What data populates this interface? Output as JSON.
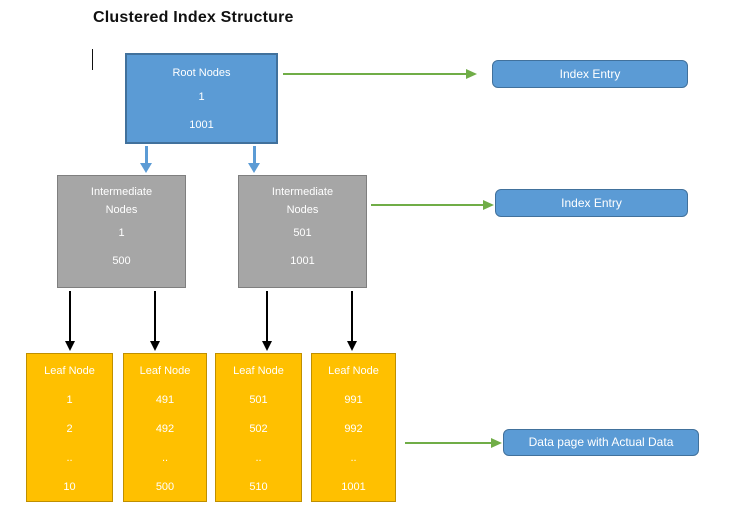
{
  "title": "Clustered Index Structure",
  "diagram": {
    "root": {
      "label": "Root Nodes",
      "values": [
        "1",
        "1001"
      ]
    },
    "intermediate": [
      {
        "label": "Intermediate Nodes",
        "values": [
          "1",
          "500"
        ]
      },
      {
        "label": "Intermediate Nodes",
        "values": [
          "501",
          "1001"
        ]
      }
    ],
    "leaves": [
      {
        "label": "Leaf Node",
        "values": [
          "1",
          "2",
          "..",
          "10"
        ]
      },
      {
        "label": "Leaf Node",
        "values": [
          "491",
          "492",
          "..",
          "500"
        ]
      },
      {
        "label": "Leaf Node",
        "values": [
          "501",
          "502",
          "..",
          "510"
        ]
      },
      {
        "label": "Leaf Node",
        "values": [
          "991",
          "992",
          "..",
          "1001"
        ]
      }
    ],
    "callouts": [
      {
        "label": "Index Entry"
      },
      {
        "label": "Index Entry"
      },
      {
        "label": "Data page with Actual Data"
      }
    ],
    "colors": {
      "node_blue": "#5B9BD5",
      "node_blue_border": "#41719C",
      "node_gray": "#A6A6A6",
      "node_gray_border": "#7F7F7F",
      "node_yellow": "#FFC000",
      "node_yellow_border": "#BF8F00",
      "arrow_green": "#70AD47",
      "arrow_blue": "#5B9BD5",
      "arrow_black": "#000000"
    }
  }
}
